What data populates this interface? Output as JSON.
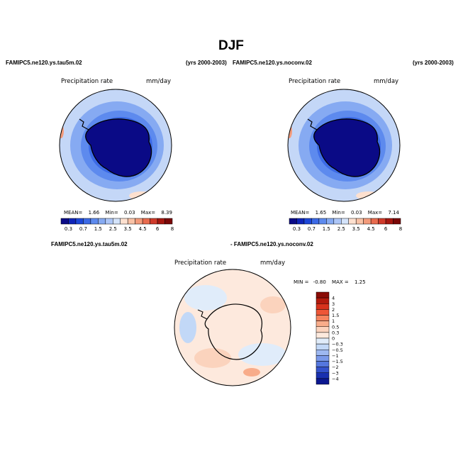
{
  "figure": {
    "title": "DJF"
  },
  "chart_data": [
    {
      "type": "heatmap",
      "projection": "south-polar-stereographic",
      "case": "FAMIPC5.ne120.ys.tau5m.02",
      "years": "(yrs 2000-2003)",
      "variable": "Precipitation rate",
      "units": "mm/day",
      "stats": {
        "mean_label": "MEAN=",
        "mean": "1.66",
        "min_label": "Min=",
        "min": "0.03",
        "max_label": "Max=",
        "max": "8.39"
      },
      "levels": [
        "0.3",
        "0.7",
        "1",
        "1.5",
        "2",
        "2.5",
        "3",
        "3.5",
        "4",
        "4.5",
        "5",
        "6",
        "7",
        "8"
      ],
      "colorbar_labels": [
        "0.3",
        "0.7",
        "1.5",
        "2.5",
        "3.5",
        "4.5",
        "6",
        "8"
      ]
    },
    {
      "type": "heatmap",
      "projection": "south-polar-stereographic",
      "case": "FAMIPC5.ne120.ys.noconv.02",
      "years": "(yrs 2000-2003)",
      "variable": "Precipitation rate",
      "units": "mm/day",
      "stats": {
        "mean_label": "MEAN=",
        "mean": "1.65",
        "min_label": "Min=",
        "min": "0.03",
        "max_label": "Max=",
        "max": "7.14"
      },
      "levels": [
        "0.3",
        "0.7",
        "1",
        "1.5",
        "2",
        "2.5",
        "3",
        "3.5",
        "4",
        "4.5",
        "5",
        "6",
        "7",
        "8"
      ],
      "colorbar_labels": [
        "0.3",
        "0.7",
        "1.5",
        "2.5",
        "3.5",
        "4.5",
        "6",
        "8"
      ]
    },
    {
      "type": "heatmap",
      "projection": "south-polar-stereographic",
      "case": "FAMIPC5.ne120.ys.tau5m.02",
      "case_diff": "- FAMIPC5.ne120.ys.noconv.02",
      "variable": "Precipitation rate",
      "units": "mm/day",
      "stats": {
        "min_label": "MIN =",
        "min": "-0.80",
        "max_label": "MAX =",
        "max": "1.25"
      },
      "colorbar_labels": [
        "4",
        "3",
        "2",
        "1.5",
        "1",
        "0.5",
        "0.3",
        "0",
        "−0.3",
        "−0.5",
        "−1",
        "−1.5",
        "−2",
        "−3",
        "−4"
      ]
    }
  ],
  "colors": {
    "abs_scale": [
      "#0a0a86",
      "#0f24b8",
      "#1d47d8",
      "#3c6ae6",
      "#5d8aee",
      "#86aaf2",
      "#adc6f7",
      "#d4e3fa",
      "#fde0cf",
      "#f9c2a6",
      "#f39b7b",
      "#e86b4e",
      "#cf3a2a",
      "#a5160f",
      "#7a0606"
    ],
    "diff_scale": [
      "#8a0b06",
      "#b31a0d",
      "#d8321c",
      "#ee5637",
      "#f6845f",
      "#f8ac8a",
      "#fbd3bd",
      "#fde9dd",
      "#e0ecfa",
      "#c2d8f7",
      "#9db8f1",
      "#7a99ea",
      "#5577de",
      "#3452cc",
      "#1930b0",
      "#0b1790"
    ]
  }
}
